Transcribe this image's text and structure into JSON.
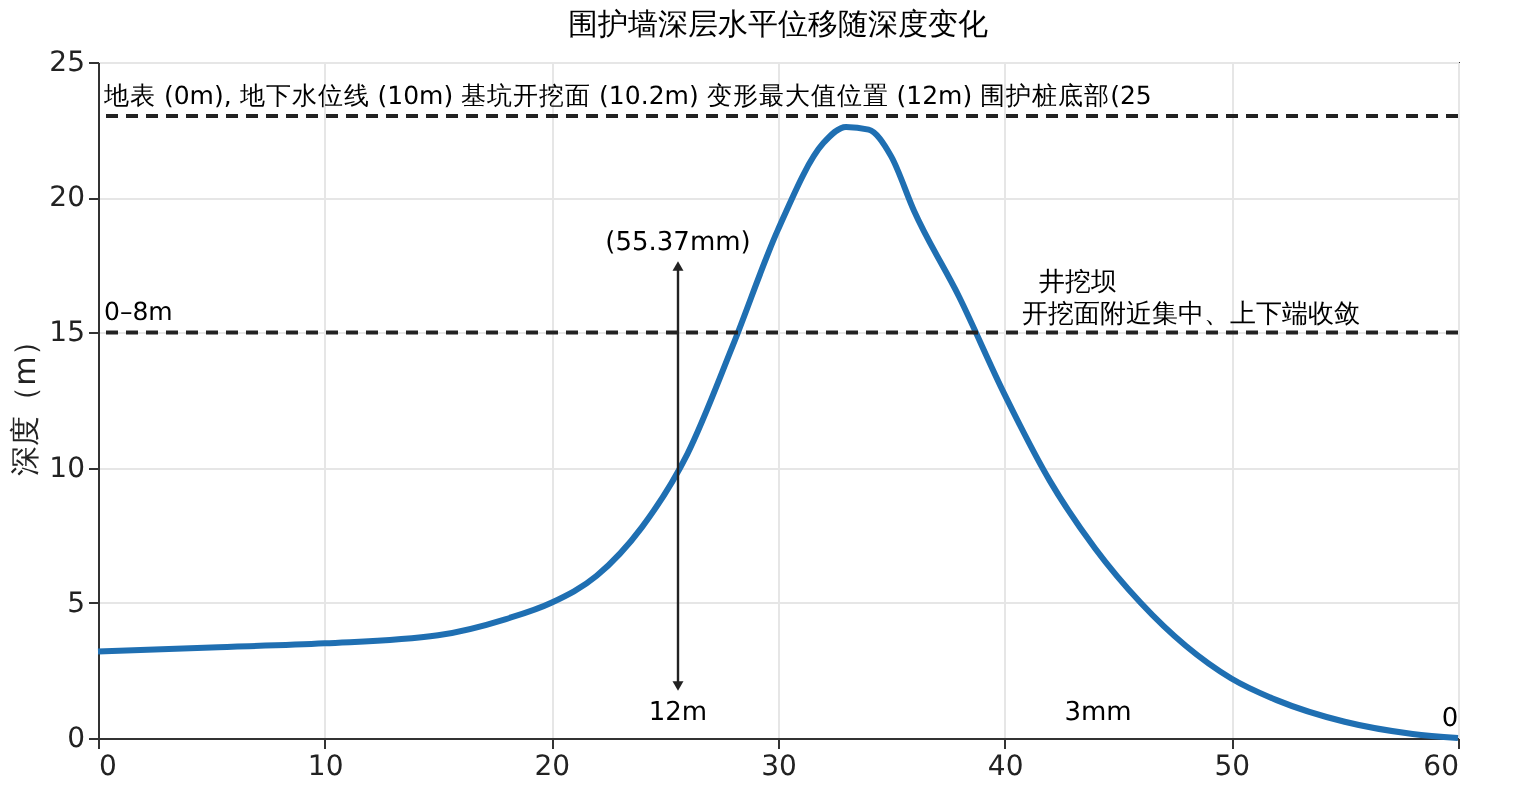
{
  "chart_data": {
    "type": "line",
    "title": "围护墙深层水平位移随深度变化",
    "ylabel": "深度（m）",
    "x": [
      0,
      5,
      10,
      15,
      18,
      20,
      22,
      24,
      26,
      28,
      30,
      32,
      33,
      34,
      35,
      36,
      38,
      40,
      42,
      44,
      46,
      48,
      50,
      52,
      55,
      58,
      60
    ],
    "series": [
      {
        "color": "#1f6fb2",
        "values": [
          3.2,
          3.35,
          3.5,
          3.8,
          4.4,
          5,
          6,
          7.8,
          10.5,
          14.5,
          18.8,
          22,
          22.6,
          22.5,
          21.5,
          19.5,
          16.3,
          12.7,
          9.5,
          7,
          5,
          3.4,
          2.2,
          1.4,
          0.6,
          0.15,
          0
        ]
      }
    ],
    "xlim": [
      0,
      60
    ],
    "xticks": [
      0,
      10,
      20,
      30,
      40,
      50,
      60
    ],
    "ylim": [
      0,
      25
    ],
    "yticks": [
      0,
      5,
      10,
      15,
      20,
      25
    ],
    "grid": true,
    "marker": "none",
    "line_style": "solid",
    "ref_lines": [
      {
        "axis": "y",
        "value": 23,
        "label": "地表 (0m), 地下水位线 (10m)  基坑开挖面 (10.2m)  变形最大值位置 (12m)  围护桩底部(25",
        "color": "#222222",
        "line_style": "dashed"
      },
      {
        "axis": "y",
        "value": 15,
        "label": "0–8m",
        "color": "#222222",
        "line_style": "dashed"
      }
    ],
    "annotations": [
      "(55.37mm)",
      "12m",
      "3mm",
      {
        "text": "0",
        "x": 60,
        "y": 0
      },
      "井挖坝",
      "开挖面附近集中、上下端收敛"
    ]
  }
}
